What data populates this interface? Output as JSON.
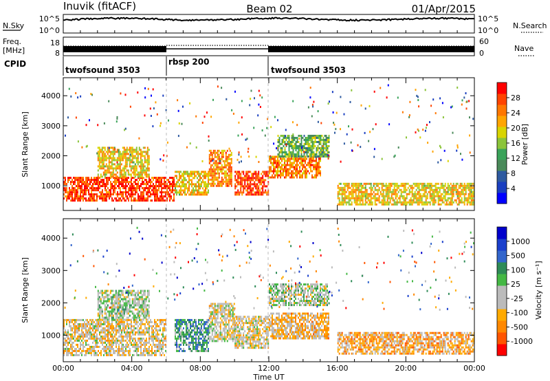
{
  "header": {
    "station": "Inuvik (fitACF)",
    "beam": "Beam 02",
    "date": "01/Apr/2015"
  },
  "aux_panels": {
    "nsky_label": "N.Sky",
    "nsky_ticks": [
      "10^5",
      "10^0"
    ],
    "nsearch_label": "N.Search",
    "nsearch_ticks": [
      "10^5",
      "10^0"
    ],
    "freq_label": "Freq.",
    "freq_unit": "[MHz]",
    "freq_ticks": [
      "18",
      "8"
    ],
    "nave_label": "Nave",
    "nave_ticks": [
      "60",
      "0"
    ],
    "cpid_label": "CPID"
  },
  "cpid_segments": [
    {
      "label": "twofsound 3503",
      "start_h": 0,
      "end_h": 6
    },
    {
      "label": "rbsp 200",
      "start_h": 6,
      "end_h": 12
    },
    {
      "label": "twofsound 3503",
      "start_h": 12,
      "end_h": 24
    }
  ],
  "time_axis": {
    "label": "Time UT",
    "range_h": [
      0,
      24
    ],
    "tick_labels": [
      "00:00",
      "04:00",
      "08:00",
      "12:00",
      "16:00",
      "20:00",
      "00:00"
    ]
  },
  "panels": [
    {
      "id": "power",
      "ylabel": "Slant Range [km]",
      "yticks": [
        "4000",
        "3000",
        "2000",
        "1000"
      ],
      "colorbar_label": "Power [dB]",
      "colorbar_ticks": [
        "28",
        "24",
        "20",
        "16",
        "12",
        "8",
        "4"
      ]
    },
    {
      "id": "velocity",
      "ylabel": "Slant Range [km]",
      "yticks": [
        "4000",
        "3000",
        "2000",
        "1000"
      ],
      "colorbar_label": "Velocity [m s⁻¹]",
      "colorbar_ticks": [
        "1000",
        "500",
        "100",
        "25",
        "-25",
        "-100",
        "-500",
        "-1000"
      ]
    }
  ],
  "chart_data": [
    {
      "type": "heatmap",
      "title": "Power",
      "xlabel": "Time UT",
      "ylabel": "Slant Range [km]",
      "x_range_h": [
        0,
        24
      ],
      "ylim": [
        180,
        4600
      ],
      "colorbar": {
        "label": "Power [dB]",
        "range": [
          0,
          32
        ],
        "colors": [
          "#0000ff",
          "#1a3fc0",
          "#2e5aa0",
          "#4a8a5a",
          "#3aa35a",
          "#8bc43a",
          "#d8d400",
          "#ffa500",
          "#ff7700",
          "#ff4400",
          "#ff0000"
        ]
      },
      "echo_regions": [
        {
          "time_h": [
            0,
            6.5
          ],
          "range_km": [
            500,
            1300
          ],
          "power_db": 28
        },
        {
          "time_h": [
            2,
            5
          ],
          "range_km": [
            1300,
            2300
          ],
          "power_db": 20
        },
        {
          "time_h": [
            6.5,
            8.5
          ],
          "range_km": [
            700,
            1500
          ],
          "power_db": 20
        },
        {
          "time_h": [
            8.5,
            9.8
          ],
          "range_km": [
            1000,
            2200
          ],
          "power_db": 24
        },
        {
          "time_h": [
            10,
            12
          ],
          "range_km": [
            700,
            1500
          ],
          "power_db": 28
        },
        {
          "time_h": [
            12,
            15
          ],
          "range_km": [
            1300,
            2000
          ],
          "power_db": 24
        },
        {
          "time_h": [
            12.5,
            15.5
          ],
          "range_km": [
            2000,
            2700
          ],
          "power_db": 14
        },
        {
          "time_h": [
            16,
            24
          ],
          "range_km": [
            400,
            1100
          ],
          "power_db": 20
        }
      ]
    },
    {
      "type": "heatmap",
      "title": "Velocity",
      "xlabel": "Time UT",
      "ylabel": "Slant Range [km]",
      "x_range_h": [
        0,
        24
      ],
      "ylim": [
        180,
        4600
      ],
      "colorbar": {
        "label": "Velocity [m s⁻¹]",
        "range": [
          -1000,
          1000
        ],
        "colors": [
          "#ff0000",
          "#ff5500",
          "#ff8800",
          "#ffaa00",
          "#bbbbbb",
          "#bbbbbb",
          "#44b844",
          "#2e8b57",
          "#3366cc",
          "#1a3fcc",
          "#0000cc"
        ]
      },
      "echo_regions": [
        {
          "time_h": [
            0,
            6
          ],
          "range_km": [
            400,
            1500
          ],
          "velocity_ms": -200
        },
        {
          "time_h": [
            2,
            5
          ],
          "range_km": [
            1500,
            2400
          ],
          "velocity_ms": 0
        },
        {
          "time_h": [
            6.5,
            8.5
          ],
          "range_km": [
            500,
            1500
          ],
          "velocity_ms": 300
        },
        {
          "time_h": [
            8.5,
            10
          ],
          "range_km": [
            800,
            2000
          ],
          "velocity_ms": -150
        },
        {
          "time_h": [
            10,
            12
          ],
          "range_km": [
            600,
            1600
          ],
          "velocity_ms": -150
        },
        {
          "time_h": [
            12,
            15.5
          ],
          "range_km": [
            900,
            1700
          ],
          "velocity_ms": -300
        },
        {
          "time_h": [
            12,
            15.5
          ],
          "range_km": [
            1900,
            2600
          ],
          "velocity_ms": 0
        },
        {
          "time_h": [
            16,
            24
          ],
          "range_km": [
            400,
            1100
          ],
          "velocity_ms": -400
        }
      ]
    }
  ]
}
